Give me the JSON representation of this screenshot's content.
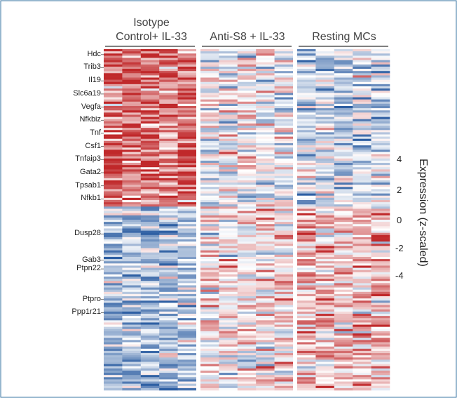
{
  "chart_data": {
    "type": "heatmap",
    "column_groups": [
      {
        "label_line1": "Isotype",
        "label_line2": "Control+ IL-33",
        "n_columns": 5
      },
      {
        "label_line1": "",
        "label_line2": "Anti-S8 + IL-33",
        "n_columns": 5
      },
      {
        "label_line1": "",
        "label_line2": "Resting MCs",
        "n_columns": 5
      }
    ],
    "n_rows": 156,
    "row_clusters": [
      {
        "name": "upregulated_block",
        "n_rows": 72,
        "group_means": [
          1.6,
          -0.1,
          -0.6
        ]
      },
      {
        "name": "downregulated_block",
        "n_rows": 84,
        "group_means": [
          -0.9,
          0.3,
          0.7
        ]
      }
    ],
    "gene_labels": [
      "Hdc",
      "Trib3",
      "Il19",
      "Slc6a19",
      "Vegfa",
      "Nfkbiz",
      "Tnf",
      "Csf1",
      "Tnfaip3",
      "Gata2",
      "Tpsab1",
      "Nfkb1",
      "Dusp28",
      "Gab3",
      "Ptpn22",
      "Ptpro",
      "Ppp1r21"
    ],
    "gene_label_rows": [
      2,
      8,
      14,
      20,
      26,
      32,
      38,
      44,
      50,
      56,
      62,
      68,
      84,
      96,
      100,
      114,
      120
    ],
    "colorbar": {
      "title": "Expression (z-scaled)",
      "ticks": [
        "4",
        "2",
        "0",
        "-2",
        "-4"
      ],
      "range": [
        -4,
        4
      ],
      "colors": {
        "low": "#2e5fa3",
        "mid": "#ffffff",
        "high": "#c0282a"
      }
    }
  },
  "frame_color": "#2f6f9f"
}
